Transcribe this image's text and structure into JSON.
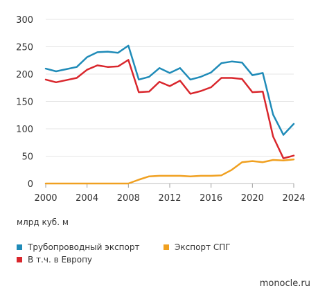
{
  "chart_data": {
    "type": "line",
    "title": "",
    "xlabel": "",
    "ylabel": "млрд куб. м",
    "xlim": [
      2000,
      2024
    ],
    "ylim": [
      0,
      300
    ],
    "x_ticks": [
      2000,
      2004,
      2008,
      2012,
      2016,
      2020,
      2024
    ],
    "y_ticks": [
      0,
      50,
      100,
      150,
      200,
      250,
      300
    ],
    "grid": "horizontal",
    "legend_position": "bottom",
    "x": [
      2000,
      2001,
      2002,
      2003,
      2004,
      2005,
      2006,
      2007,
      2008,
      2009,
      2010,
      2011,
      2012,
      2013,
      2014,
      2015,
      2016,
      2017,
      2018,
      2019,
      2020,
      2021,
      2022,
      2023,
      2024
    ],
    "series": [
      {
        "name": "Трубопроводный экспорт",
        "color": "#1f8bb8",
        "values": [
          210,
          205,
          209,
          213,
          231,
          240,
          241,
          239,
          252,
          190,
          195,
          211,
          202,
          211,
          190,
          195,
          203,
          220,
          223,
          221,
          198,
          202,
          126,
          89,
          109
        ]
      },
      {
        "name": "В т.ч. в Европу",
        "color": "#d9262c",
        "values": [
          190,
          185,
          189,
          193,
          208,
          216,
          213,
          214,
          226,
          167,
          168,
          186,
          178,
          188,
          164,
          169,
          176,
          193,
          193,
          191,
          167,
          168,
          86,
          46,
          51
        ]
      },
      {
        "name": "Экспорт СПГ",
        "color": "#f0a020",
        "values": [
          0,
          0,
          0,
          0,
          0,
          0,
          0,
          0,
          0,
          7,
          13,
          14,
          14,
          14,
          13,
          14,
          14,
          15,
          25,
          39,
          41,
          39,
          43,
          42,
          44
        ]
      }
    ]
  },
  "legend_items": [
    {
      "label": "Трубопроводный экспорт",
      "color": "#1f8bb8"
    },
    {
      "label": "Экспорт СПГ",
      "color": "#f0a020"
    },
    {
      "label": "В т.ч. в Европу",
      "color": "#d9262c"
    }
  ],
  "unit_label": "млрд куб. м",
  "source": "monocle.ru"
}
